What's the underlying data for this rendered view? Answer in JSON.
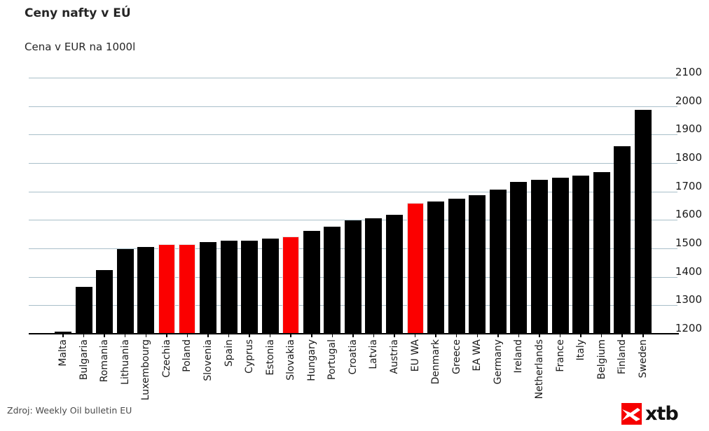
{
  "header": {
    "title": "Ceny nafty v EÚ",
    "subtitle": "Cena v EUR na 1000l"
  },
  "footer": {
    "source": "Zdroj: Weekly Oil bulletin EU",
    "logo_text": "xtb"
  },
  "colors": {
    "bar": "#000000",
    "highlight_bar": "#fb0000",
    "highlight_border": "#e6e6e6",
    "gridline": "#a9bfc9",
    "axis_line": "#000000",
    "text": "#262626",
    "source_text": "#4a4a4a",
    "logo_red": "#f60000"
  },
  "chart_data": {
    "type": "bar",
    "title": "Ceny nafty v EÚ",
    "subtitle": "Cena v EUR na 1000l",
    "xlabel": "",
    "ylabel": "",
    "ylim": [
      1200,
      2100
    ],
    "yticks": [
      2100,
      2000,
      1900,
      1800,
      1700,
      1600,
      1500,
      1400,
      1300,
      1200
    ],
    "ytick_side": "right",
    "grid": true,
    "legend": false,
    "categories": [
      "Malta",
      "Bulgaria",
      "Romania",
      "Lithuania",
      "Luxembourg",
      "Czechia",
      "Poland",
      "Slovenia",
      "Spain",
      "Cyprus",
      "Estonia",
      "Slovakia",
      "Hungary",
      "Portugal",
      "Croatia",
      "Latvia",
      "Austria",
      "EU WA",
      "Denmark",
      "Greece",
      "EA WA",
      "Germany",
      "Ireland",
      "Netherlands",
      "France",
      "Italy",
      "Belgium",
      "Finland",
      "Sweden"
    ],
    "values": [
      1208,
      1366,
      1425,
      1498,
      1505,
      1516,
      1516,
      1523,
      1528,
      1528,
      1534,
      1541,
      1561,
      1577,
      1599,
      1606,
      1617,
      1659,
      1664,
      1674,
      1686,
      1707,
      1734,
      1740,
      1748,
      1755,
      1767,
      1860,
      1986
    ],
    "highlighted": [
      "Czechia",
      "Poland",
      "Slovakia",
      "EU WA"
    ]
  }
}
